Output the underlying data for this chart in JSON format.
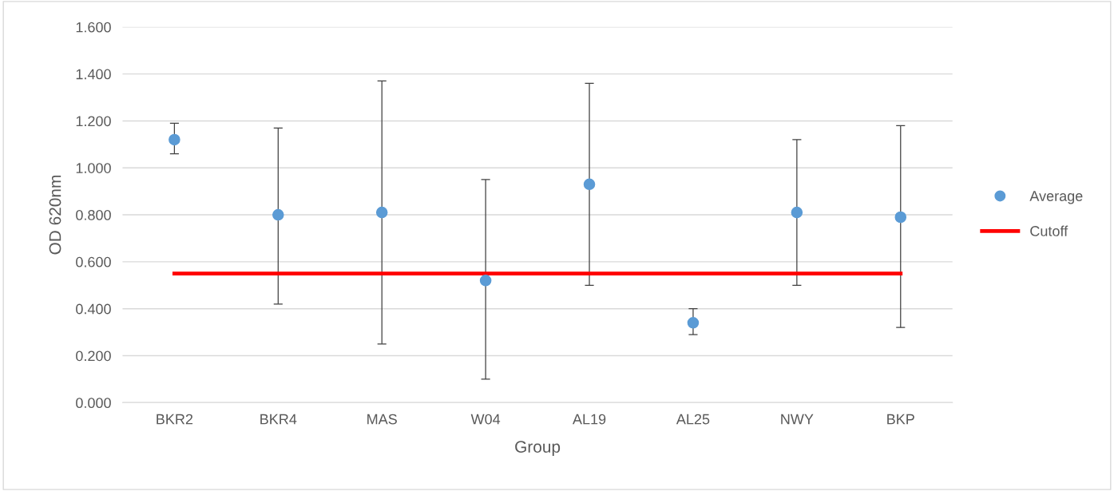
{
  "chart_data": {
    "type": "scatter",
    "xlabel": "Group",
    "ylabel": "OD 620nm",
    "categories": [
      "BKR2",
      "BKR4",
      "MAS",
      "W04",
      "AL19",
      "AL25",
      "NWY",
      "BKP"
    ],
    "series": [
      {
        "name": "Average",
        "color": "#5b9bd5",
        "marker": "circle",
        "values": [
          1.12,
          0.8,
          0.81,
          0.52,
          0.93,
          0.34,
          0.81,
          0.79
        ],
        "errors": [
          [
            1.06,
            1.19
          ],
          [
            0.42,
            1.17
          ],
          [
            0.25,
            1.37
          ],
          [
            0.1,
            0.95
          ],
          [
            0.5,
            1.36
          ],
          [
            0.29,
            0.4
          ],
          [
            0.5,
            1.12
          ],
          [
            0.32,
            1.18
          ]
        ]
      },
      {
        "name": "Cutoff",
        "type": "line",
        "color": "#ff0000",
        "marker": "none",
        "values": [
          0.55,
          0.55,
          0.55,
          0.55,
          0.55,
          0.55,
          0.55,
          0.55
        ]
      }
    ],
    "ylim": [
      0,
      1.6
    ],
    "yticks": [
      {
        "value": 0,
        "label": "0.000"
      },
      {
        "value": 0.2,
        "label": "0.200"
      },
      {
        "value": 0.4,
        "label": "0.400"
      },
      {
        "value": 0.6,
        "label": "0.600"
      },
      {
        "value": 0.8,
        "label": "0.800"
      },
      {
        "value": 1.0,
        "label": "1.000"
      },
      {
        "value": 1.2,
        "label": "1.200"
      },
      {
        "value": 1.4,
        "label": "1.400"
      },
      {
        "value": 1.6,
        "label": "1.600"
      }
    ],
    "grid": "y",
    "legend": "right"
  }
}
